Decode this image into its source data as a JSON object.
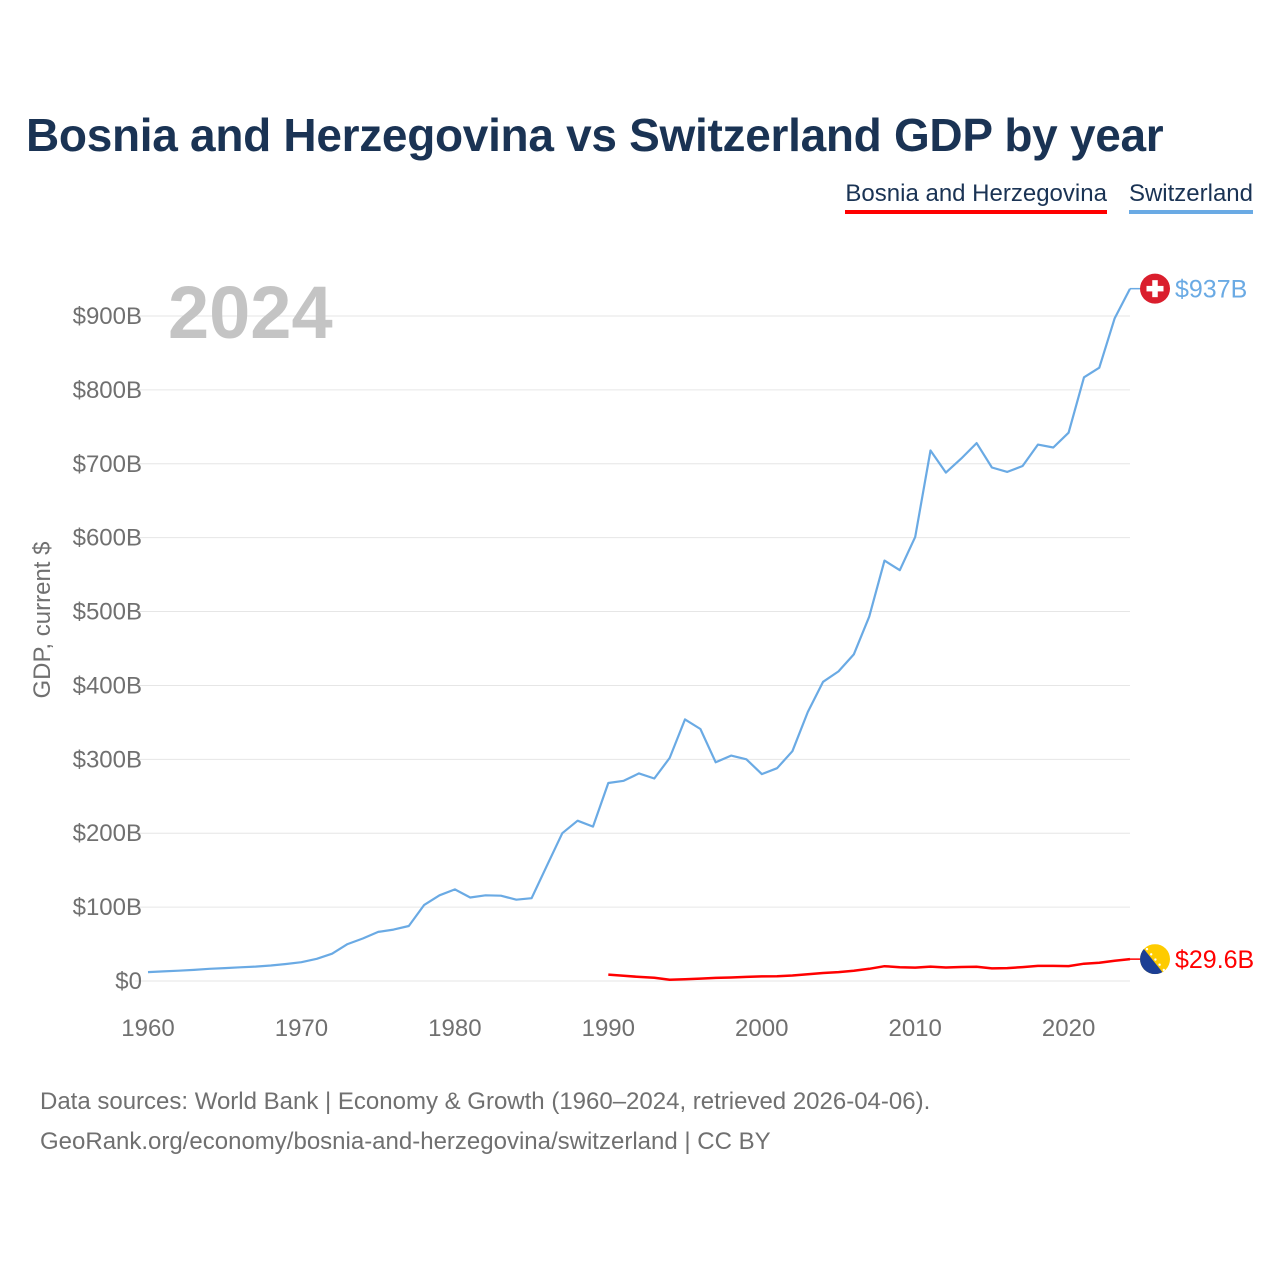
{
  "title": "Bosnia and Herzegovina vs Switzerland GDP by year",
  "legend": [
    {
      "label": "Bosnia and Herzegovina",
      "color": "#ff0000"
    },
    {
      "label": "Switzerland",
      "color": "#6aaae4"
    }
  ],
  "year_watermark": "2024",
  "source": {
    "line1": "Data sources: World Bank | Economy & Growth (1960–2024, retrieved 2026-04-06).",
    "line2": "GeoRank.org/economy/bosnia-and-herzegovina/switzerland | CC BY"
  },
  "chart_data": {
    "type": "line",
    "title": "Bosnia and Herzegovina vs Switzerland GDP by year",
    "xlabel": "",
    "ylabel": "GDP, current $",
    "xlim": [
      1960,
      2024
    ],
    "ylim": [
      0,
      900
    ],
    "y_unit": "billion USD",
    "x_ticks": [
      1960,
      1970,
      1980,
      1990,
      2000,
      2010,
      2020
    ],
    "x_tick_labels": [
      "1960",
      "1970",
      "1980",
      "1990",
      "2000",
      "2010",
      "2020"
    ],
    "y_ticks": [
      0,
      100,
      200,
      300,
      400,
      500,
      600,
      700,
      800,
      900
    ],
    "y_tick_labels": [
      "$0",
      "$100B",
      "$200B",
      "$300B",
      "$400B",
      "$500B",
      "$600B",
      "$700B",
      "$800B",
      "$900B"
    ],
    "grid": true,
    "legend_position": "top-right",
    "series": [
      {
        "name": "Switzerland",
        "color": "#6aaae4",
        "end_label": "$937B",
        "x": [
          1960,
          1961,
          1962,
          1963,
          1964,
          1965,
          1966,
          1967,
          1968,
          1969,
          1970,
          1971,
          1972,
          1973,
          1974,
          1975,
          1976,
          1977,
          1978,
          1979,
          1980,
          1981,
          1982,
          1983,
          1984,
          1985,
          1986,
          1987,
          1988,
          1989,
          1990,
          1991,
          1992,
          1993,
          1994,
          1995,
          1996,
          1997,
          1998,
          1999,
          2000,
          2001,
          2002,
          2003,
          2004,
          2005,
          2006,
          2007,
          2008,
          2009,
          2010,
          2011,
          2012,
          2013,
          2014,
          2015,
          2016,
          2017,
          2018,
          2019,
          2020,
          2021,
          2022,
          2023,
          2024
        ],
        "values": [
          12,
          13,
          14,
          15,
          16.5,
          17.5,
          18.5,
          19.5,
          21,
          23,
          25.5,
          30,
          37,
          50,
          57.5,
          66.5,
          69.5,
          74.5,
          103,
          116,
          124,
          113,
          116,
          115.5,
          110,
          112,
          156,
          200,
          217,
          209,
          268,
          271,
          281,
          274,
          302,
          354,
          341,
          296,
          305,
          300,
          280,
          288,
          311,
          364,
          405,
          419,
          442,
          493,
          569,
          556,
          601,
          718,
          688,
          707,
          728,
          695,
          689,
          697,
          726,
          722,
          742,
          817,
          830,
          897,
          937
        ]
      },
      {
        "name": "Bosnia and Herzegovina",
        "color": "#ff0000",
        "end_label": "$29.6B",
        "x": [
          1990,
          1991,
          1992,
          1993,
          1994,
          1995,
          1996,
          1997,
          1998,
          1999,
          2000,
          2001,
          2002,
          2003,
          2004,
          2005,
          2006,
          2007,
          2008,
          2009,
          2010,
          2011,
          2012,
          2013,
          2014,
          2015,
          2016,
          2017,
          2018,
          2019,
          2020,
          2021,
          2022,
          2023,
          2024
        ],
        "values": [
          8.7,
          7,
          5.5,
          4.5,
          1.8,
          2.4,
          3.3,
          4.2,
          4.8,
          5.5,
          6.2,
          6.3,
          7.5,
          9.1,
          10.8,
          12,
          13.8,
          16.5,
          20,
          18.7,
          18.2,
          19.5,
          18.3,
          19,
          19.3,
          17,
          17.5,
          18.8,
          20.5,
          20.4,
          20.2,
          23.4,
          24.6,
          27.5,
          29.6
        ]
      }
    ]
  }
}
